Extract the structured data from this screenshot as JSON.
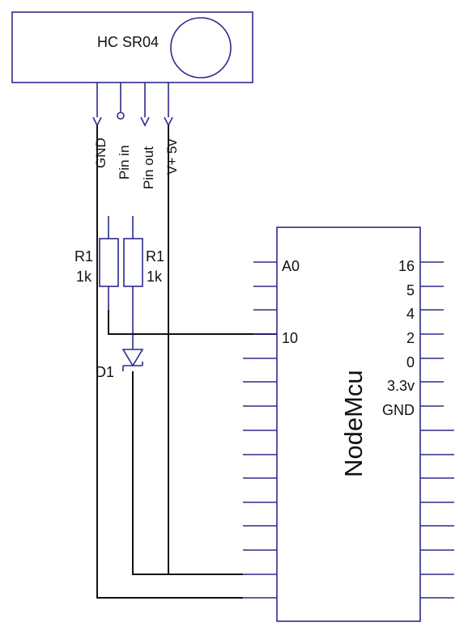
{
  "sensor": {
    "label": "HC SR04"
  },
  "sensor_pins": [
    "GND",
    "Pin in",
    "Pin out",
    "V+ 5v"
  ],
  "resistors": [
    {
      "name": "R1",
      "value": "1k"
    },
    {
      "name": "R1",
      "value": "1k"
    }
  ],
  "diode": {
    "name": "D1"
  },
  "mcu": {
    "label": "NodeMcu",
    "left_pins": [
      "A0",
      "",
      "",
      "10",
      "",
      "",
      "",
      "",
      "",
      "",
      "",
      "",
      "",
      "",
      ""
    ],
    "right_pins": [
      "16",
      "5",
      "4",
      "2",
      "0",
      "3.3v",
      "GND",
      "",
      "",
      "",
      "",
      "",
      "",
      "",
      ""
    ]
  },
  "colors": {
    "component": "#2b2b8c",
    "wire": "#111111"
  }
}
